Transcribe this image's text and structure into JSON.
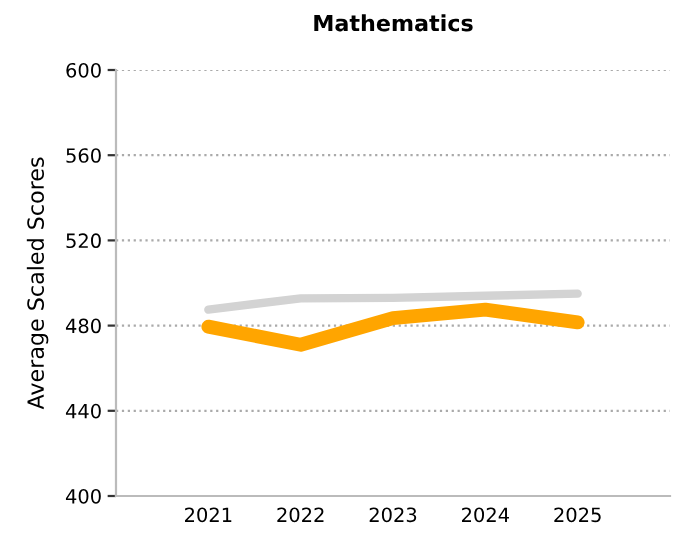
{
  "chart_data": {
    "type": "line",
    "title": "Mathematics",
    "ylabel": "Average Scaled Scores",
    "categories": [
      "2021",
      "2022",
      "2023",
      "2024",
      "2025"
    ],
    "series": [
      {
        "color": "#d3d3d3",
        "values": [
          487.5,
          492.8,
          493,
          494,
          495
        ]
      },
      {
        "color": "#ffa500",
        "values": [
          479.5,
          471,
          483.5,
          487.5,
          481.5
        ]
      }
    ],
    "ylim": [
      400,
      600
    ],
    "yticks": [
      400,
      440,
      480,
      520,
      560,
      600
    ],
    "grid": "y",
    "legend": false,
    "marker": "none",
    "line_style": "solid"
  }
}
